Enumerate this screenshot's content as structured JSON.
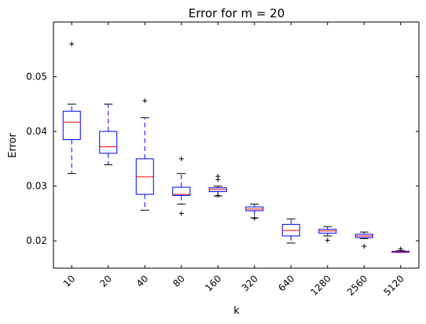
{
  "chart_data": {
    "type": "box",
    "title": "Error for m = 20",
    "xlabel": "k",
    "ylabel": "Error",
    "categories": [
      "10",
      "20",
      "40",
      "80",
      "160",
      "320",
      "640",
      "1280",
      "2560",
      "5120"
    ],
    "ylim": [
      0.015,
      0.06
    ],
    "yticks": [
      0.02,
      0.03,
      0.04,
      0.05
    ],
    "ytick_labels": [
      "0.02",
      "0.03",
      "0.04",
      "0.05"
    ],
    "grid": false,
    "box_color": "#0000ff",
    "median_color": "#ff0000",
    "whisker_color": "#0000ff",
    "cap_color": "#000000",
    "flier_color": "#000000",
    "boxes": [
      {
        "category": "10",
        "whisker_low": 0.0323,
        "q1": 0.0385,
        "median": 0.0417,
        "q3": 0.0437,
        "whisker_high": 0.045,
        "fliers": [
          0.056
        ]
      },
      {
        "category": "20",
        "whisker_low": 0.0339,
        "q1": 0.036,
        "median": 0.0372,
        "q3": 0.04,
        "whisker_high": 0.045,
        "fliers": []
      },
      {
        "category": "40",
        "whisker_low": 0.0256,
        "q1": 0.0285,
        "median": 0.0317,
        "q3": 0.035,
        "whisker_high": 0.0425,
        "fliers": [
          0.0456
        ]
      },
      {
        "category": "80",
        "whisker_low": 0.0267,
        "q1": 0.0283,
        "median": 0.0285,
        "q3": 0.0298,
        "whisker_high": 0.0323,
        "fliers": [
          0.035,
          0.025
        ]
      },
      {
        "category": "160",
        "whisker_low": 0.0282,
        "q1": 0.029,
        "median": 0.0294,
        "q3": 0.0297,
        "whisker_high": 0.03,
        "fliers": [
          0.0318,
          0.0312,
          0.0283
        ]
      },
      {
        "category": "320",
        "whisker_low": 0.0242,
        "q1": 0.0255,
        "median": 0.0258,
        "q3": 0.0262,
        "whisker_high": 0.0267,
        "fliers": [
          0.0241
        ]
      },
      {
        "category": "640",
        "whisker_low": 0.0196,
        "q1": 0.0209,
        "median": 0.0219,
        "q3": 0.023,
        "whisker_high": 0.024,
        "fliers": []
      },
      {
        "category": "1280",
        "whisker_low": 0.0209,
        "q1": 0.0214,
        "median": 0.0218,
        "q3": 0.0221,
        "whisker_high": 0.0226,
        "fliers": [
          0.0201
        ]
      },
      {
        "category": "2560",
        "whisker_low": 0.0204,
        "q1": 0.0206,
        "median": 0.0209,
        "q3": 0.0212,
        "whisker_high": 0.0216,
        "fliers": [
          0.019
        ]
      },
      {
        "category": "5120",
        "whisker_low": 0.0179,
        "q1": 0.0179,
        "median": 0.018,
        "q3": 0.0181,
        "whisker_high": 0.0182,
        "fliers": [
          0.0185
        ]
      }
    ]
  }
}
